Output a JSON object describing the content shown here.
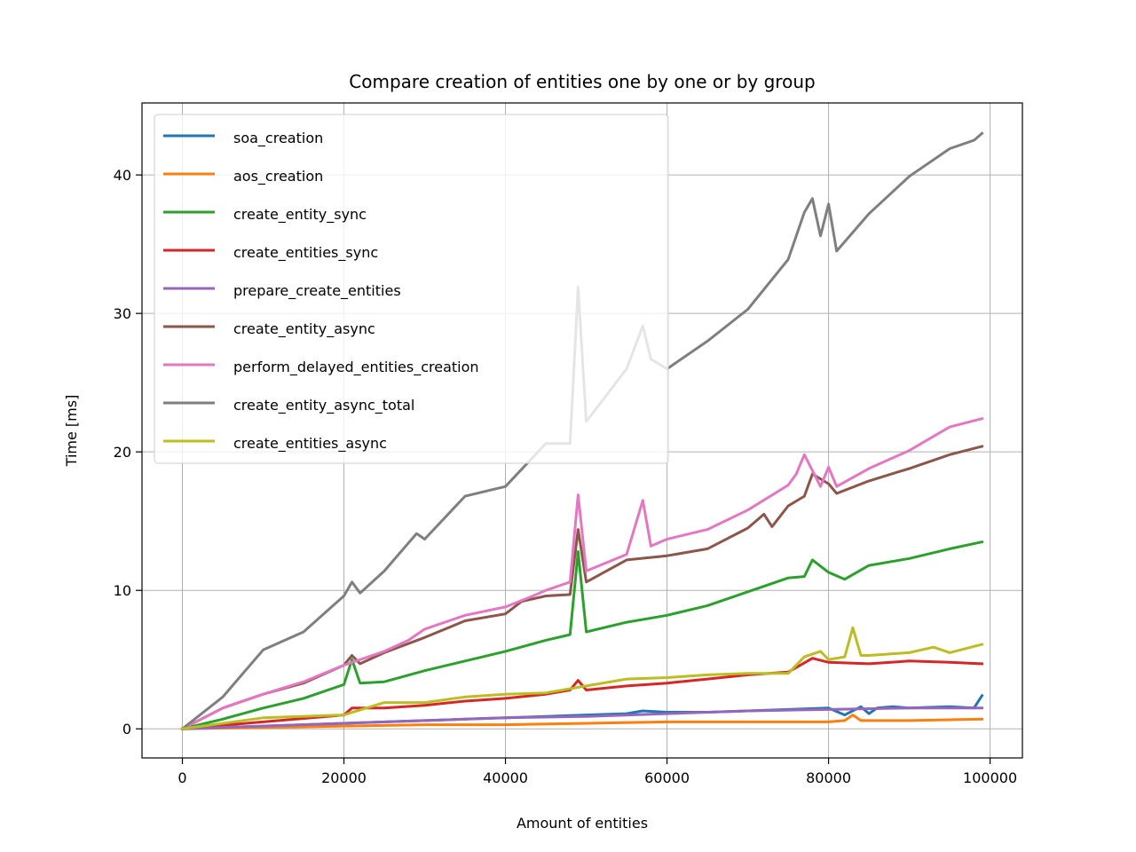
{
  "chart_data": {
    "type": "line",
    "title": "Compare creation of entities one by one or by group",
    "xlabel": "Amount of entities",
    "ylabel": "Time [ms]",
    "xlim": [
      -5000,
      104000
    ],
    "ylim": [
      -2.1,
      45.2
    ],
    "xticks": [
      0,
      20000,
      40000,
      60000,
      80000,
      100000
    ],
    "yticks": [
      0,
      10,
      20,
      30,
      40
    ],
    "grid": true,
    "legend_position": "top-left",
    "series": [
      {
        "name": "soa_creation",
        "color": "#1f77b4",
        "x": [
          0,
          5000,
          10000,
          15000,
          20000,
          25000,
          30000,
          35000,
          40000,
          45000,
          50000,
          55000,
          57000,
          60000,
          65000,
          70000,
          75000,
          80000,
          82000,
          84000,
          85000,
          86000,
          88000,
          90000,
          95000,
          98000,
          99000
        ],
        "y": [
          0,
          0.1,
          0.2,
          0.3,
          0.4,
          0.5,
          0.6,
          0.7,
          0.8,
          0.9,
          1.0,
          1.1,
          1.3,
          1.2,
          1.2,
          1.3,
          1.4,
          1.5,
          1.0,
          1.6,
          1.1,
          1.5,
          1.6,
          1.5,
          1.6,
          1.5,
          2.4
        ]
      },
      {
        "name": "aos_creation",
        "color": "#ff7f0e",
        "x": [
          0,
          10000,
          20000,
          30000,
          40000,
          50000,
          60000,
          70000,
          80000,
          82000,
          83000,
          84000,
          90000,
          99000
        ],
        "y": [
          0,
          0.1,
          0.2,
          0.3,
          0.3,
          0.4,
          0.5,
          0.5,
          0.5,
          0.6,
          1.0,
          0.6,
          0.6,
          0.7
        ]
      },
      {
        "name": "create_entity_sync",
        "color": "#2ca02c",
        "x": [
          0,
          5000,
          10000,
          15000,
          20000,
          21000,
          22000,
          25000,
          30000,
          35000,
          40000,
          45000,
          48000,
          49000,
          50000,
          55000,
          60000,
          65000,
          70000,
          75000,
          77000,
          78000,
          80000,
          82000,
          85000,
          90000,
          95000,
          99000
        ],
        "y": [
          0,
          0.7,
          1.5,
          2.2,
          3.2,
          5.0,
          3.3,
          3.4,
          4.2,
          4.9,
          5.6,
          6.4,
          6.8,
          12.8,
          7.0,
          7.7,
          8.2,
          8.9,
          9.9,
          10.9,
          11.0,
          12.2,
          11.3,
          10.8,
          11.8,
          12.3,
          13.0,
          13.5
        ]
      },
      {
        "name": "create_entities_sync",
        "color": "#d62728",
        "x": [
          0,
          10000,
          20000,
          21000,
          25000,
          30000,
          35000,
          40000,
          45000,
          48000,
          49000,
          50000,
          55000,
          60000,
          65000,
          70000,
          75000,
          78000,
          80000,
          85000,
          90000,
          95000,
          99000
        ],
        "y": [
          0,
          0.5,
          1.0,
          1.5,
          1.5,
          1.7,
          2.0,
          2.2,
          2.5,
          2.8,
          3.5,
          2.8,
          3.1,
          3.3,
          3.6,
          3.9,
          4.1,
          5.1,
          4.8,
          4.7,
          4.9,
          4.8,
          4.7
        ]
      },
      {
        "name": "prepare_create_entities",
        "color": "#9467bd",
        "x": [
          0,
          10000,
          20000,
          30000,
          40000,
          50000,
          60000,
          70000,
          80000,
          90000,
          99000
        ],
        "y": [
          0,
          0.2,
          0.4,
          0.6,
          0.8,
          0.9,
          1.1,
          1.3,
          1.4,
          1.5,
          1.5
        ]
      },
      {
        "name": "create_entity_async",
        "color": "#8c564b",
        "x": [
          0,
          5000,
          10000,
          15000,
          20000,
          21000,
          22000,
          25000,
          30000,
          35000,
          40000,
          42000,
          45000,
          48000,
          49000,
          50000,
          55000,
          60000,
          65000,
          70000,
          72000,
          73000,
          75000,
          77000,
          78000,
          80000,
          81000,
          85000,
          90000,
          95000,
          99000
        ],
        "y": [
          0,
          1.5,
          2.5,
          3.3,
          4.6,
          5.3,
          4.7,
          5.5,
          6.6,
          7.8,
          8.3,
          9.2,
          9.6,
          9.7,
          14.4,
          10.6,
          12.2,
          12.5,
          13.0,
          14.5,
          15.5,
          14.6,
          16.1,
          16.8,
          18.4,
          17.7,
          17.0,
          17.9,
          18.8,
          19.8,
          20.4
        ]
      },
      {
        "name": "perform_delayed_entities_creation",
        "color": "#e377c2",
        "x": [
          0,
          5000,
          10000,
          15000,
          20000,
          25000,
          28000,
          30000,
          35000,
          40000,
          43000,
          45000,
          48000,
          49000,
          50000,
          55000,
          57000,
          58000,
          60000,
          65000,
          70000,
          75000,
          76000,
          77000,
          79000,
          80000,
          81000,
          85000,
          90000,
          95000,
          99000
        ],
        "y": [
          0,
          1.5,
          2.5,
          3.4,
          4.6,
          5.6,
          6.4,
          7.2,
          8.2,
          8.8,
          9.5,
          10.0,
          10.6,
          16.9,
          11.4,
          12.6,
          16.5,
          13.2,
          13.7,
          14.4,
          15.8,
          17.6,
          18.4,
          19.8,
          17.5,
          18.9,
          17.5,
          18.8,
          20.1,
          21.8,
          22.4
        ]
      },
      {
        "name": "create_entity_async_total",
        "color": "#7f7f7f",
        "x": [
          0,
          5000,
          10000,
          15000,
          20000,
          21000,
          22000,
          25000,
          29000,
          30000,
          35000,
          40000,
          45000,
          48000,
          49000,
          50000,
          55000,
          57000,
          58000,
          60000,
          65000,
          70000,
          75000,
          77000,
          78000,
          79000,
          80000,
          81000,
          85000,
          90000,
          95000,
          98000,
          99000
        ],
        "y": [
          0,
          2.3,
          5.7,
          7.0,
          9.6,
          10.6,
          9.8,
          11.4,
          14.1,
          13.7,
          16.8,
          17.5,
          20.6,
          20.6,
          31.9,
          22.2,
          26.0,
          29.1,
          26.7,
          26.0,
          28.0,
          30.3,
          33.9,
          37.3,
          38.3,
          35.6,
          37.9,
          34.5,
          37.2,
          39.9,
          41.9,
          42.5,
          43.0
        ]
      },
      {
        "name": "create_entities_async",
        "color": "#bcbd22",
        "x": [
          0,
          10000,
          20000,
          25000,
          30000,
          35000,
          40000,
          45000,
          50000,
          55000,
          60000,
          65000,
          70000,
          75000,
          77000,
          79000,
          80000,
          82000,
          83000,
          84000,
          85000,
          90000,
          93000,
          95000,
          99000
        ],
        "y": [
          0,
          0.8,
          1.0,
          1.9,
          1.9,
          2.3,
          2.5,
          2.6,
          3.1,
          3.6,
          3.7,
          3.9,
          4.0,
          4.0,
          5.2,
          5.6,
          5.0,
          5.2,
          7.3,
          5.3,
          5.3,
          5.5,
          5.9,
          5.5,
          6.1
        ]
      }
    ]
  }
}
